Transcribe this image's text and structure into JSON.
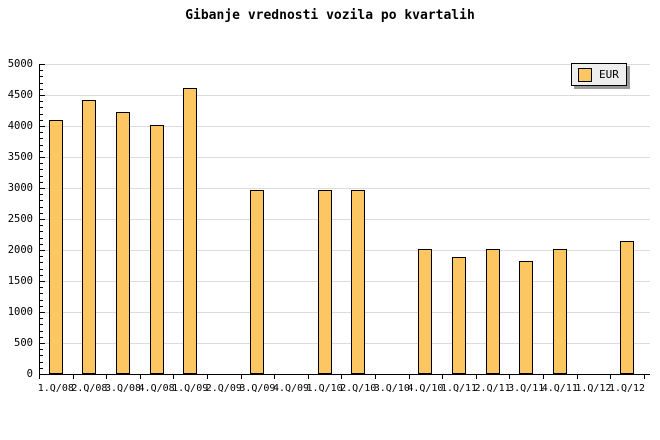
{
  "title": "Gibanje vrednosti vozila po kvartalih",
  "legend": {
    "label": "EUR",
    "swatch_color": "#fcc762"
  },
  "colors": {
    "background": "#ffffff",
    "bar_fill": "#fcc762",
    "bar_border": "#000000",
    "gridline": "#dcdcdc",
    "axis": "#000000",
    "text": "#000000",
    "legend_background": "#eeeeee",
    "legend_shadow": "#999999"
  },
  "chart_data": {
    "type": "bar",
    "title": "Gibanje vrednosti vozila po kvartalih",
    "categories": [
      "1.Q/08",
      "2.Q/08",
      "3.Q/08",
      "4.Q/08",
      "1.Q/09",
      "2.Q/09",
      "3.Q/09",
      "4.Q/09",
      "1.Q/10",
      "2.Q/10",
      "3.Q/10",
      "4.Q/10",
      "1.Q/11",
      "2.Q/11",
      "3.Q/11",
      "4.Q/11",
      "1.Q/12",
      "1.Q/12"
    ],
    "series": [
      {
        "name": "EUR",
        "values": [
          4090,
          4420,
          4220,
          4020,
          4620,
          null,
          2960,
          null,
          2960,
          2960,
          null,
          2010,
          1890,
          2010,
          1820,
          2010,
          null,
          2140
        ]
      }
    ],
    "xlabel": "",
    "ylabel": "",
    "ylim": [
      0,
      5000
    ],
    "y_major_step": 500,
    "y_minor_step": 100,
    "y_tick_labels": [
      "0",
      "500",
      "1000",
      "1500",
      "2000",
      "2500",
      "3000",
      "3500",
      "4000",
      "4500",
      "5000"
    ],
    "grid": "horizontal",
    "legend_position": "top-right"
  }
}
